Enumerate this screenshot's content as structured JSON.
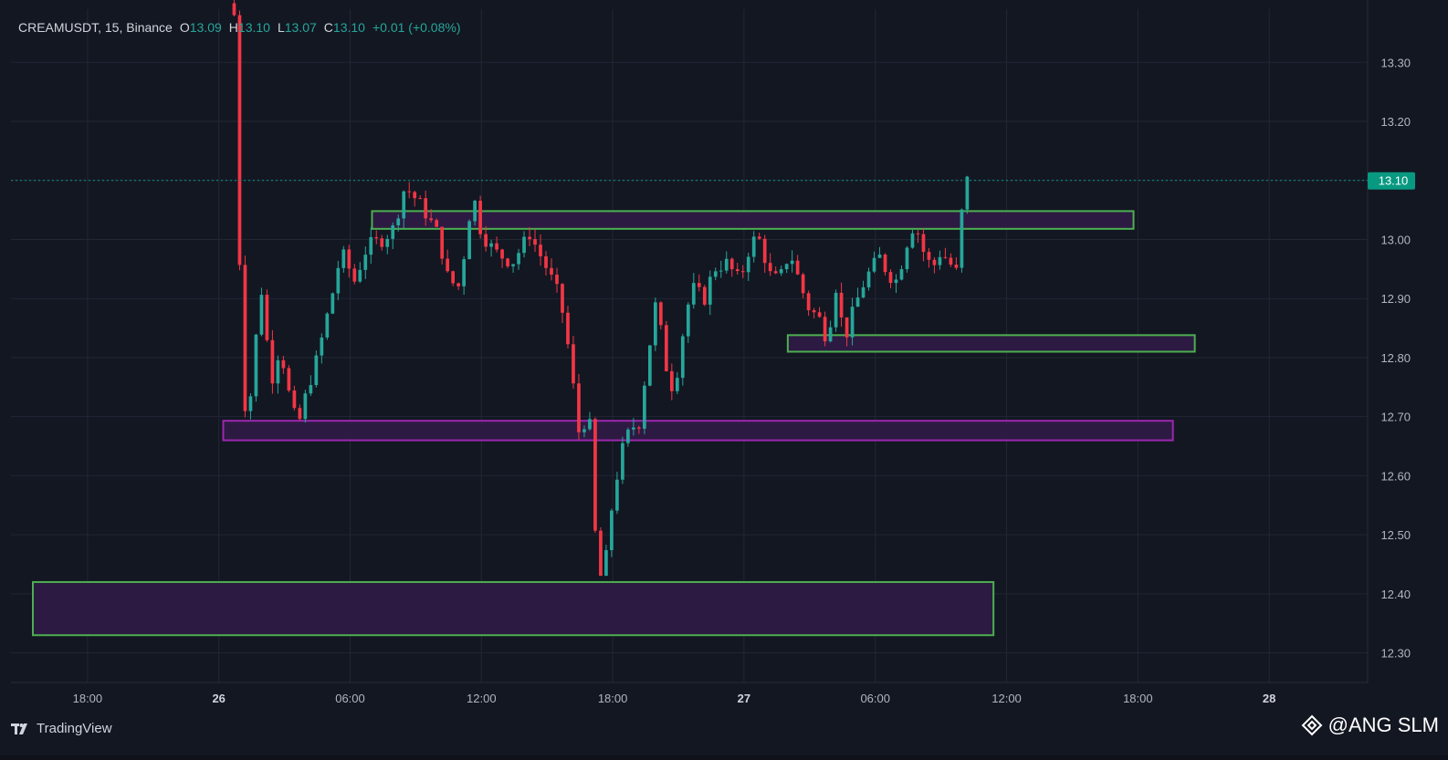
{
  "header": {
    "symbol": "CREAMUSDT, 15, Binance",
    "open_label": "O",
    "open": "13.09",
    "high_label": "H",
    "high": "13.10",
    "low_label": "L",
    "low": "13.07",
    "close_label": "C",
    "close": "13.10",
    "change": "+0.01 (+0.08%)"
  },
  "footer": {
    "logo_text": "TradingView"
  },
  "watermark": {
    "text": "@ANG SLM"
  },
  "colors": {
    "background": "#131722",
    "grid": "#232734",
    "axis_text": "#b2b5be",
    "up": "#26a69a",
    "down": "#f23645",
    "last_price_bg": "#089981",
    "zone_fill": "#2e1a45",
    "zone_border_green": "#4caf50",
    "zone_border_purple": "#9c27b0"
  },
  "chart_data": {
    "type": "candlestick",
    "ylim": [
      12.25,
      13.39
    ],
    "y_ticks": [
      13.3,
      13.2,
      13.1,
      13.0,
      12.9,
      12.8,
      12.7,
      12.6,
      12.5,
      12.4,
      12.3
    ],
    "x_ticks": [
      "18:00",
      "26",
      "06:00",
      "12:00",
      "18:00",
      "27",
      "06:00",
      "12:00",
      "18:00",
      "28"
    ],
    "x_tick_positions": [
      -6,
      0,
      6,
      12,
      18,
      24,
      30,
      36,
      42,
      48
    ],
    "xlim": [
      -9.5,
      52.5
    ],
    "x_unit": "hours from 26 00:00",
    "last_price": 13.1,
    "last_price_label": "13.10",
    "zones": [
      {
        "t_start": 7.0,
        "t_end": 41.8,
        "top": 13.048,
        "bottom": 13.018,
        "border": "green"
      },
      {
        "t_start": 26.0,
        "t_end": 44.6,
        "top": 12.838,
        "bottom": 12.81,
        "border": "green"
      },
      {
        "t_start": 0.2,
        "t_end": 43.6,
        "top": 12.693,
        "bottom": 12.66,
        "border": "purple"
      },
      {
        "t_start": -15.5,
        "t_end": 35.4,
        "top": 12.42,
        "bottom": 12.33,
        "border": "green"
      }
    ],
    "anchors": [
      [
        0.7,
        13.38
      ],
      [
        1.0,
        12.88
      ],
      [
        1.2,
        12.72
      ],
      [
        1.5,
        12.74
      ],
      [
        1.9,
        12.93
      ],
      [
        2.4,
        12.76
      ],
      [
        2.8,
        12.82
      ],
      [
        3.2,
        12.74
      ],
      [
        3.6,
        12.68
      ],
      [
        4.0,
        12.74
      ],
      [
        4.5,
        12.8
      ],
      [
        5.2,
        12.91
      ],
      [
        5.6,
        12.98
      ],
      [
        6.2,
        12.93
      ],
      [
        6.8,
        12.99
      ],
      [
        7.5,
        13.0
      ],
      [
        8.0,
        13.02
      ],
      [
        8.5,
        13.09
      ],
      [
        9.2,
        13.06
      ],
      [
        10.0,
        13.01
      ],
      [
        10.5,
        12.93
      ],
      [
        11.0,
        12.92
      ],
      [
        11.6,
        13.08
      ],
      [
        12.0,
        13.01
      ],
      [
        12.6,
        12.98
      ],
      [
        13.4,
        12.96
      ],
      [
        14.2,
        13.01
      ],
      [
        15.0,
        12.95
      ],
      [
        15.6,
        12.9
      ],
      [
        16.0,
        12.81
      ],
      [
        16.5,
        12.66
      ],
      [
        16.9,
        12.72
      ],
      [
        17.3,
        12.43
      ],
      [
        17.6,
        12.43
      ],
      [
        18.0,
        12.56
      ],
      [
        18.4,
        12.64
      ],
      [
        18.8,
        12.68
      ],
      [
        19.2,
        12.69
      ],
      [
        19.6,
        12.8
      ],
      [
        20.0,
        12.9
      ],
      [
        20.4,
        12.79
      ],
      [
        20.8,
        12.74
      ],
      [
        21.2,
        12.84
      ],
      [
        21.6,
        12.92
      ],
      [
        22.2,
        12.9
      ],
      [
        22.6,
        12.95
      ],
      [
        23.2,
        12.96
      ],
      [
        23.8,
        12.93
      ],
      [
        24.2,
        12.98
      ],
      [
        24.6,
        13.01
      ],
      [
        25.2,
        12.94
      ],
      [
        25.6,
        12.93
      ],
      [
        26.1,
        12.98
      ],
      [
        26.6,
        12.92
      ],
      [
        27.0,
        12.88
      ],
      [
        27.4,
        12.87
      ],
      [
        27.8,
        12.83
      ],
      [
        28.2,
        12.92
      ],
      [
        28.6,
        12.83
      ],
      [
        29.0,
        12.88
      ],
      [
        29.4,
        12.92
      ],
      [
        29.8,
        12.95
      ],
      [
        30.2,
        12.97
      ],
      [
        30.6,
        12.94
      ],
      [
        31.0,
        12.93
      ],
      [
        31.4,
        12.99
      ],
      [
        31.8,
        13.03
      ],
      [
        32.2,
        12.98
      ],
      [
        32.6,
        12.95
      ],
      [
        33.0,
        12.98
      ],
      [
        33.4,
        12.96
      ],
      [
        33.8,
        12.94
      ],
      [
        34.0,
        13.08
      ],
      [
        34.2,
        13.1
      ]
    ]
  }
}
